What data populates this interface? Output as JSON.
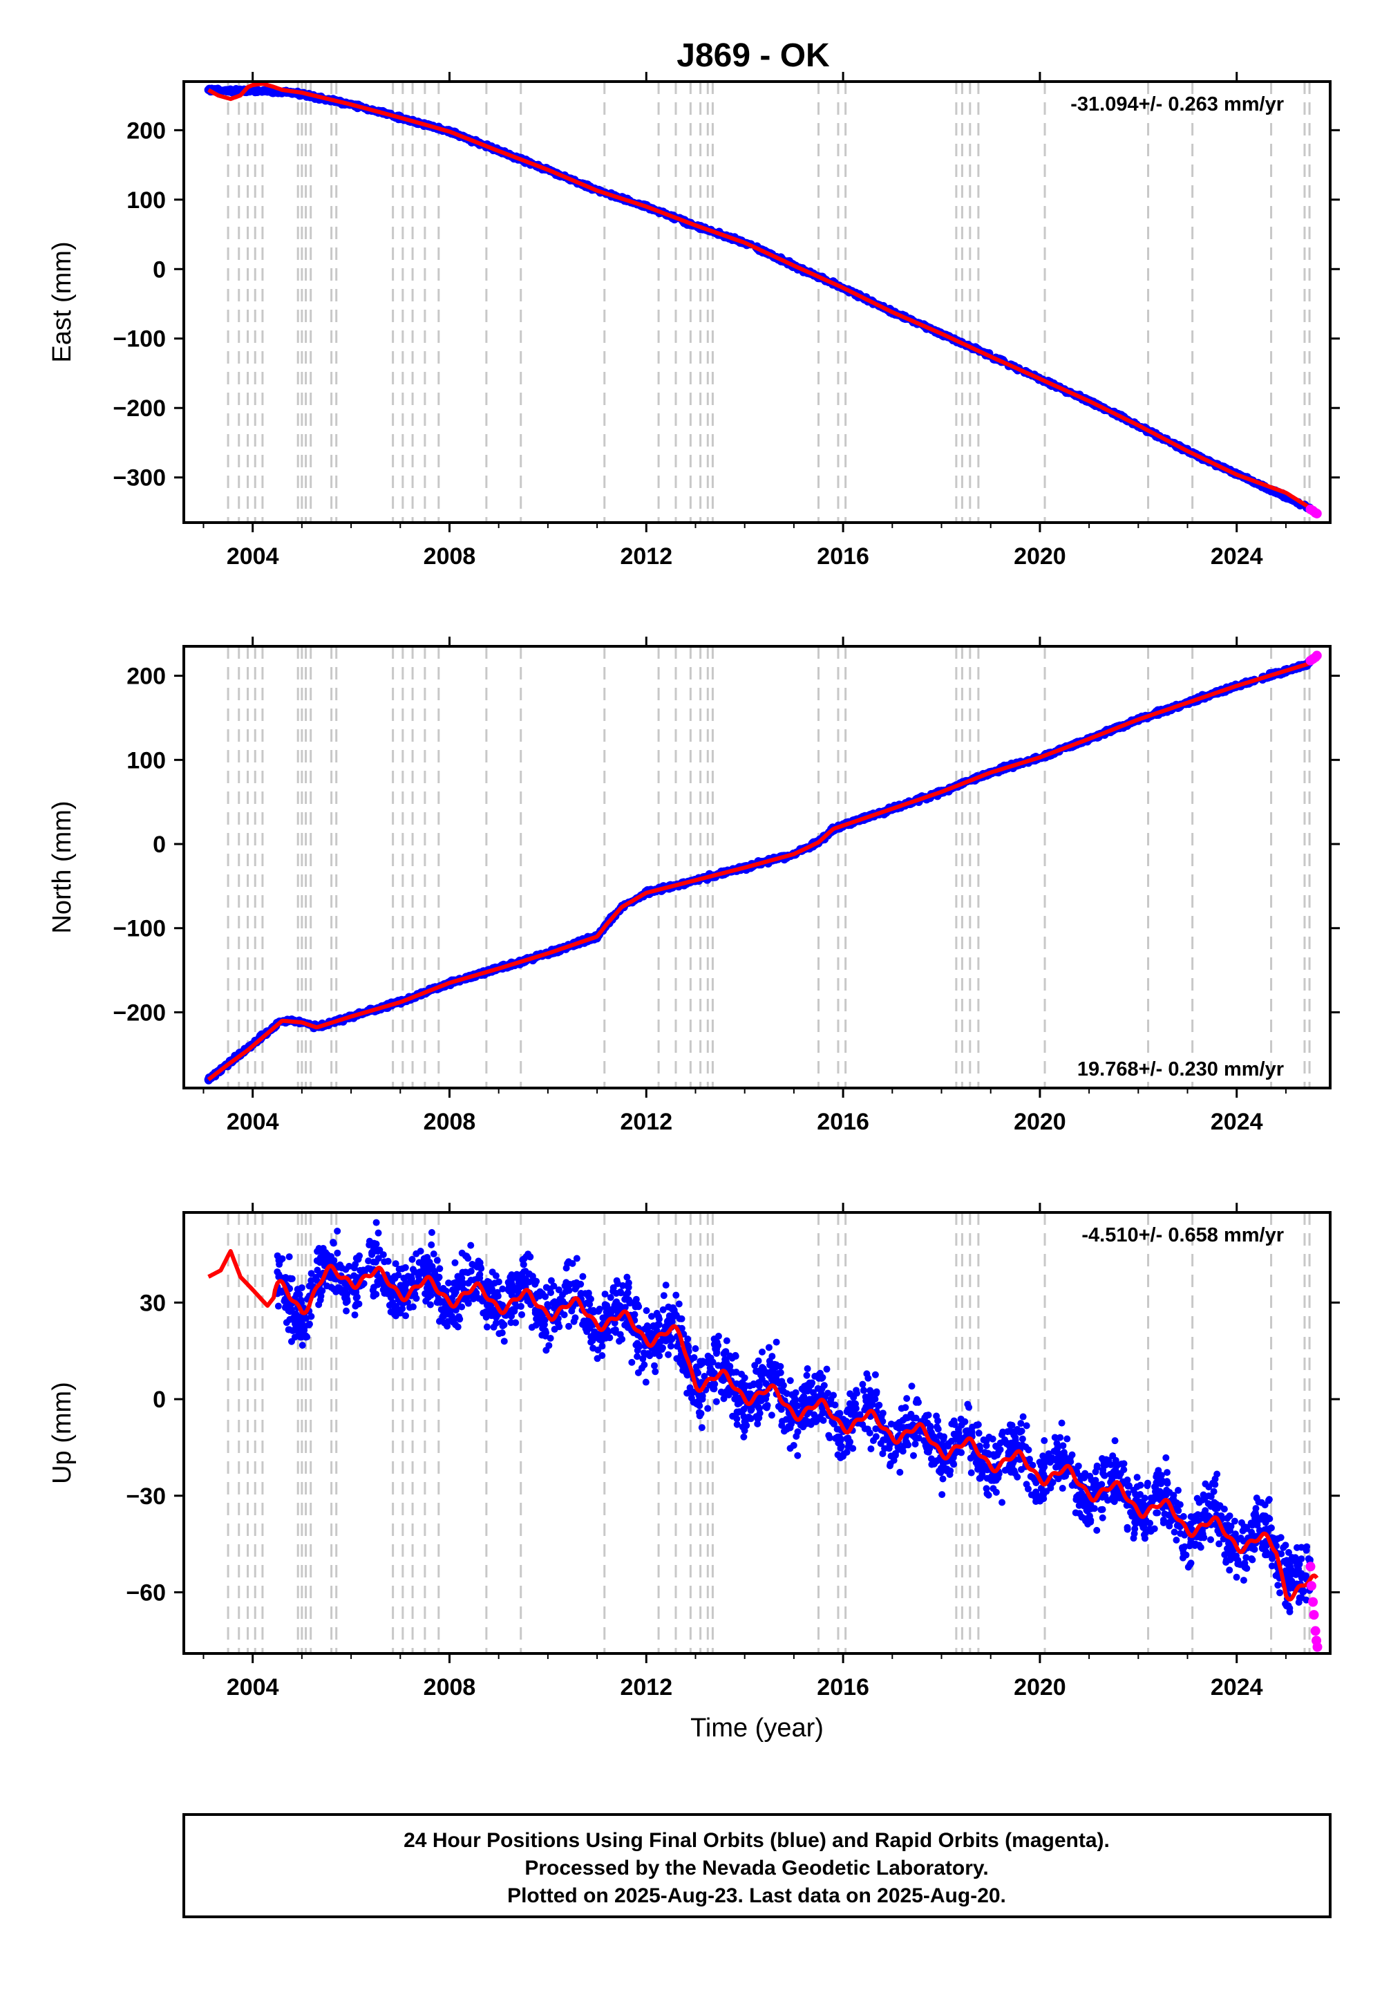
{
  "title": "J869 - OK",
  "colors": {
    "final_orbits": "#0000ff",
    "rapid_orbits": "#ff00ff",
    "model": "#ff0000",
    "event_lines": "#c8c8c8",
    "frame": "#000000"
  },
  "event_years": [
    2003.5,
    2003.72,
    2003.9,
    2004.05,
    2004.2,
    2004.92,
    2005.0,
    2005.08,
    2005.18,
    2005.6,
    2005.7,
    2006.85,
    2007.05,
    2007.25,
    2007.5,
    2007.78,
    2008.75,
    2009.45,
    2011.15,
    2012.25,
    2012.6,
    2012.9,
    2013.1,
    2013.25,
    2013.35,
    2015.5,
    2015.9,
    2016.05,
    2018.3,
    2018.42,
    2018.58,
    2018.75,
    2020.1,
    2022.2,
    2023.1,
    2024.7,
    2025.38,
    2025.48
  ],
  "footer": {
    "line1": "24 Hour Positions Using Final Orbits (blue) and Rapid Orbits (magenta).",
    "line2": "Processed by the Nevada Geodetic Laboratory.",
    "line3": "Plotted on 2025-Aug-23. Last data on 2025-Aug-20."
  },
  "chart_data": [
    {
      "type": "scatter",
      "panel": "east",
      "ylabel": "East (mm)",
      "rate_label": "-31.094+/- 0.263 mm/yr",
      "rate_position": "top-right",
      "xlim": [
        2002.6,
        2025.9
      ],
      "ylim": [
        -365,
        270
      ],
      "x_ticks": [
        2004,
        2008,
        2012,
        2016,
        2020,
        2024
      ],
      "x_tick_labels": [
        "2004",
        "2008",
        "2012",
        "2016",
        "2020",
        "2024"
      ],
      "y_ticks": [
        200,
        100,
        0,
        -100,
        -200,
        -300
      ],
      "y_tick_labels": [
        "200",
        "100",
        "0",
        "−100",
        "−200",
        "−300"
      ],
      "grid": false,
      "series": [
        {
          "name": "final orbits",
          "role": "final",
          "x": [
            2003.1,
            2004.6,
            2005,
            2006,
            2007,
            2008,
            2009,
            2010,
            2011,
            2012,
            2013,
            2014,
            2015,
            2016,
            2017,
            2018,
            2019,
            2020,
            2021,
            2022,
            2023,
            2024,
            2025.5
          ],
          "y": [
            258,
            255,
            252,
            237,
            218,
            198,
            170,
            143,
            113,
            90,
            62,
            38,
            5,
            -27,
            -62,
            -93,
            -125,
            -158,
            -190,
            -225,
            -262,
            -295,
            -345
          ]
        },
        {
          "name": "rapid orbits",
          "role": "rapid",
          "x": [
            2025.5,
            2025.55,
            2025.6,
            2025.63
          ],
          "y": [
            -346,
            -348,
            -351,
            -352
          ]
        },
        {
          "name": "model",
          "role": "model",
          "x": [
            2003.1,
            2003.3,
            2003.55,
            2003.75,
            2003.9,
            2004.0,
            2004.2,
            2004.4,
            2004.6,
            2005,
            2006,
            2007,
            2008,
            2009,
            2010,
            2011,
            2012,
            2013,
            2014,
            2015,
            2016,
            2017,
            2018,
            2019,
            2020,
            2021,
            2022,
            2023,
            2024,
            2025,
            2025.63
          ],
          "y": [
            258,
            250,
            245,
            250,
            262,
            265,
            267,
            263,
            258,
            254,
            237,
            218,
            198,
            170,
            143,
            113,
            90,
            63,
            38,
            5,
            -27,
            -62,
            -93,
            -126,
            -158,
            -190,
            -225,
            -262,
            -296,
            -322,
            -350
          ]
        }
      ]
    },
    {
      "type": "scatter",
      "panel": "north",
      "ylabel": "North (mm)",
      "rate_label": "19.768+/- 0.230 mm/yr",
      "rate_position": "bottom-right",
      "xlim": [
        2002.6,
        2025.9
      ],
      "ylim": [
        -290,
        235
      ],
      "x_ticks": [
        2004,
        2008,
        2012,
        2016,
        2020,
        2024
      ],
      "x_tick_labels": [
        "2004",
        "2008",
        "2012",
        "2016",
        "2020",
        "2024"
      ],
      "y_ticks": [
        200,
        100,
        0,
        -100,
        -200
      ],
      "y_tick_labels": [
        "200",
        "100",
        "0",
        "−100",
        "−200"
      ],
      "grid": false,
      "series": [
        {
          "name": "final orbits",
          "role": "final",
          "x": [
            2003.1,
            2004.6,
            2005,
            2005.3,
            2006,
            2007,
            2008,
            2009,
            2010,
            2011,
            2011.2,
            2011.5,
            2012,
            2013,
            2014,
            2015,
            2015.5,
            2015.8,
            2016,
            2017,
            2018,
            2019,
            2020,
            2021,
            2022,
            2023,
            2024,
            2025.5
          ],
          "y": [
            -280,
            -210,
            -212,
            -218,
            -205,
            -188,
            -165,
            -148,
            -130,
            -110,
            -95,
            -75,
            -58,
            -43,
            -28,
            -12,
            2,
            18,
            22,
            42,
            62,
            85,
            103,
            125,
            148,
            168,
            188,
            215
          ]
        },
        {
          "name": "rapid orbits",
          "role": "rapid",
          "x": [
            2025.5,
            2025.55,
            2025.6,
            2025.63
          ],
          "y": [
            218,
            220,
            222,
            224
          ]
        },
        {
          "name": "model",
          "role": "model",
          "x": [
            2003.1,
            2003.5,
            2003.9,
            2004.3,
            2004.6,
            2005,
            2005.3,
            2006,
            2007,
            2008,
            2009,
            2010,
            2011,
            2011.2,
            2011.5,
            2012,
            2013,
            2014,
            2015,
            2015.5,
            2015.8,
            2016,
            2017,
            2018,
            2019,
            2020,
            2021,
            2022,
            2023,
            2024,
            2025.5
          ],
          "y": [
            -280,
            -262,
            -245,
            -225,
            -210,
            -212,
            -218,
            -205,
            -188,
            -165,
            -148,
            -130,
            -110,
            -95,
            -75,
            -58,
            -43,
            -28,
            -12,
            2,
            18,
            22,
            42,
            62,
            85,
            103,
            125,
            148,
            168,
            188,
            215
          ]
        }
      ]
    },
    {
      "type": "scatter",
      "panel": "up",
      "xlabel": "Time (year)",
      "ylabel": "Up (mm)",
      "rate_label": "-4.510+/- 0.658 mm/yr",
      "rate_position": "top-right",
      "xlim": [
        2002.6,
        2025.9
      ],
      "ylim": [
        -79,
        58
      ],
      "x_ticks": [
        2004,
        2008,
        2012,
        2016,
        2020,
        2024
      ],
      "x_tick_labels": [
        "2004",
        "2008",
        "2012",
        "2016",
        "2020",
        "2024"
      ],
      "y_ticks": [
        30,
        0,
        -30,
        -60
      ],
      "y_tick_labels": [
        "30",
        "0",
        "−30",
        "−60"
      ],
      "grid": false,
      "series": [
        {
          "name": "final orbits",
          "role": "final",
          "x": [
            2004.5,
            2005,
            2005.5,
            2006,
            2007,
            2008,
            2009,
            2010,
            2011,
            2012,
            2012.7,
            2013,
            2014,
            2015,
            2016,
            2017,
            2018,
            2019,
            2020,
            2021,
            2022,
            2023,
            2024,
            2024.8,
            2025.5
          ],
          "y": [
            33,
            30,
            37,
            40,
            36,
            34,
            32,
            30,
            27,
            22,
            19,
            8,
            4,
            -1,
            -5,
            -8,
            -13,
            -17,
            -21,
            -26,
            -31,
            -37,
            -42,
            -46,
            -60
          ],
          "scatter_half_width": 9
        },
        {
          "name": "rapid orbits",
          "role": "rapid",
          "x": [
            2025.5,
            2025.52,
            2025.55,
            2025.57,
            2025.6,
            2025.62,
            2025.64
          ],
          "y": [
            -52,
            -58,
            -63,
            -67,
            -72,
            -75,
            -77
          ]
        },
        {
          "name": "model",
          "role": "model",
          "x": [
            2003.1,
            2003.35,
            2003.55,
            2003.75,
            2004.0,
            2004.3,
            2004.5,
            2005,
            2005.5,
            2006,
            2007,
            2008,
            2009,
            2010,
            2011,
            2012,
            2012.7,
            2013,
            2014,
            2015,
            2016,
            2017,
            2018,
            2019,
            2020,
            2021,
            2022,
            2023,
            2024,
            2024.8,
            2025.0,
            2025.63
          ],
          "y": [
            38,
            40,
            46,
            38,
            34,
            29,
            33,
            30,
            37,
            39,
            35,
            33,
            31,
            29,
            26,
            21,
            18,
            7,
            3,
            -2,
            -6,
            -9,
            -14,
            -18,
            -22,
            -27,
            -32,
            -38,
            -43,
            -47,
            -58,
            -59
          ],
          "seasonal_amplitude": 5
        }
      ]
    }
  ]
}
